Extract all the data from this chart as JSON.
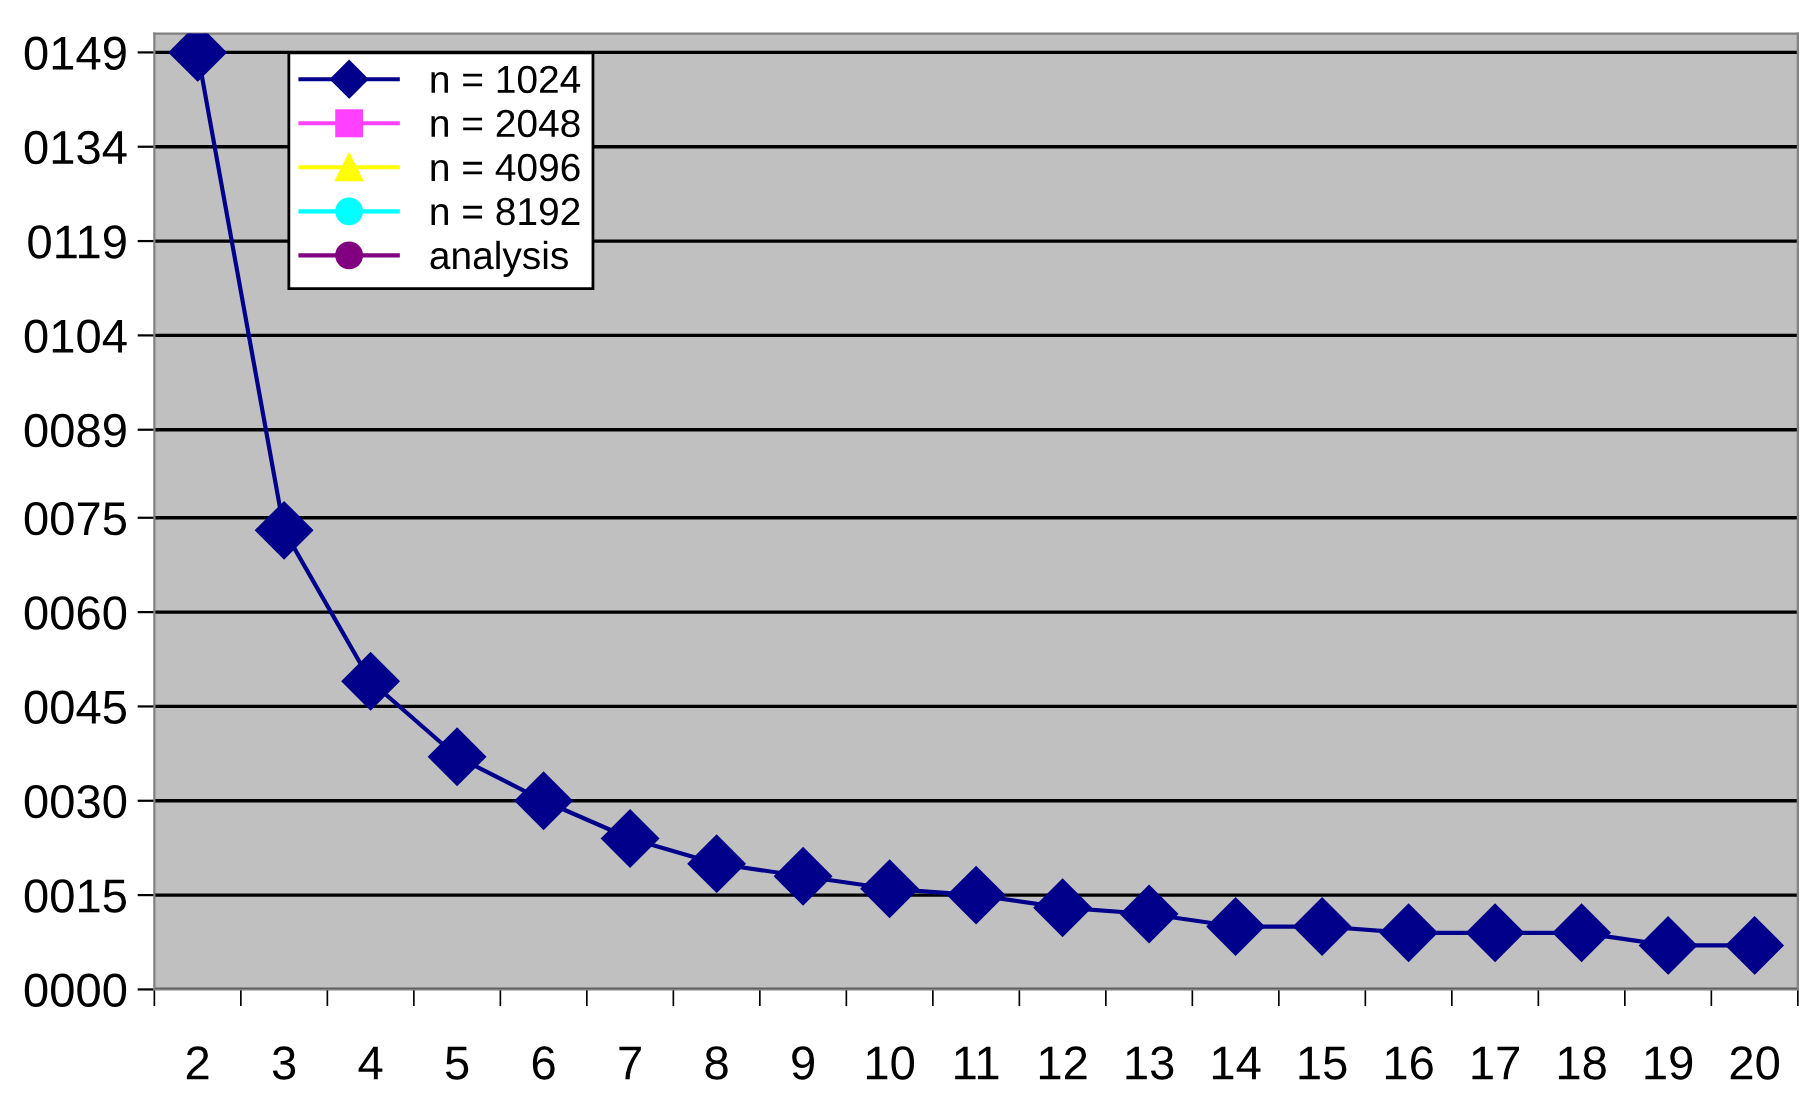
{
  "chart_data": {
    "type": "line",
    "categories": [
      "2",
      "3",
      "4",
      "5",
      "6",
      "7",
      "8",
      "9",
      "10",
      "11",
      "12",
      "13",
      "14",
      "15",
      "16",
      "17",
      "18",
      "19",
      "20"
    ],
    "ylim": [
      0,
      152
    ],
    "yticks": [
      {
        "value": 0,
        "label": "0000"
      },
      {
        "value": 15,
        "label": "0015"
      },
      {
        "value": 30,
        "label": "0030"
      },
      {
        "value": 45,
        "label": "0045"
      },
      {
        "value": 60,
        "label": "0060"
      },
      {
        "value": 75,
        "label": "0075"
      },
      {
        "value": 89,
        "label": "0089"
      },
      {
        "value": 104,
        "label": "0104"
      },
      {
        "value": 119,
        "label": "0119"
      },
      {
        "value": 134,
        "label": "0134"
      },
      {
        "value": 149,
        "label": "0149"
      }
    ],
    "grid": "y",
    "legend": "top left",
    "series": [
      {
        "name": "analysis",
        "color": "#800080",
        "marker": "circle",
        "values": [
          null,
          null,
          null,
          null,
          null,
          null,
          null,
          null,
          null,
          null,
          null,
          null,
          null,
          null,
          null,
          null,
          null,
          null,
          null
        ]
      },
      {
        "name": "n = 8192",
        "color": "#00ffff",
        "marker": "circle",
        "values": [
          null,
          null,
          null,
          null,
          null,
          null,
          null,
          null,
          null,
          null,
          null,
          null,
          null,
          null,
          null,
          null,
          null,
          null,
          null
        ]
      },
      {
        "name": "n = 4096",
        "color": "#ffff00",
        "marker": "triangle",
        "values": [
          null,
          null,
          null,
          null,
          null,
          null,
          null,
          null,
          null,
          null,
          null,
          null,
          null,
          null,
          null,
          null,
          null,
          null,
          null
        ]
      },
      {
        "name": "n = 2048",
        "color": "#ff40ff",
        "marker": "square",
        "values": [
          null,
          null,
          null,
          null,
          null,
          null,
          null,
          null,
          null,
          null,
          null,
          null,
          null,
          null,
          null,
          null,
          null,
          null,
          null
        ]
      },
      {
        "name": "n = 1024",
        "color": "#00008b",
        "marker": "diamond",
        "values": [
          149,
          73,
          49,
          37,
          30,
          24,
          20,
          18,
          16,
          15,
          13,
          12,
          10,
          10,
          9,
          9,
          9,
          7,
          7
        ]
      }
    ]
  }
}
